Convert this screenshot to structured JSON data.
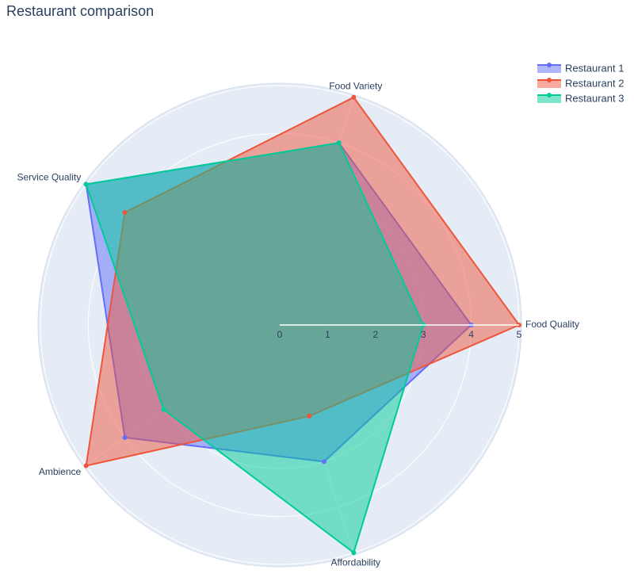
{
  "chart_data": {
    "type": "radar",
    "title": "Restaurant comparison",
    "categories": [
      "Food Quality",
      "Food Variety",
      "Service Quality",
      "Ambience",
      "Affordability"
    ],
    "series": [
      {
        "name": "Restaurant 1",
        "color": "#636efa",
        "values": [
          4,
          4,
          5,
          4,
          3
        ]
      },
      {
        "name": "Restaurant 2",
        "color": "#EF553B",
        "values": [
          5,
          5,
          4,
          5,
          2
        ]
      },
      {
        "name": "Restaurant 3",
        "color": "#00cc96",
        "values": [
          3,
          4,
          5,
          3,
          5
        ]
      }
    ],
    "rlim": [
      0,
      5
    ],
    "rticks": [
      0,
      1,
      2,
      3,
      4,
      5
    ],
    "grid": true,
    "legend": "top-right"
  }
}
